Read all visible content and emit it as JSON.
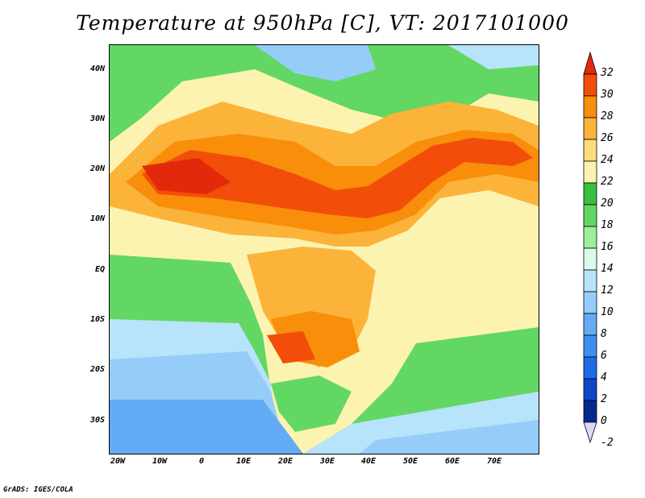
{
  "title": "Temperature at 950hPa [C], VT: 2017101000",
  "footer": "GrADS: IGES/COLA",
  "map": {
    "lat_labels": [
      "40N",
      "30N",
      "20N",
      "10N",
      "EQ",
      "10S",
      "20S",
      "30S"
    ],
    "lon_labels": [
      "20W",
      "10W",
      "0",
      "10E",
      "20E",
      "30E",
      "40E",
      "50E",
      "60E",
      "70E"
    ],
    "lat_range": [
      -37,
      44
    ],
    "lon_range": [
      -23,
      80
    ]
  },
  "colorbar": {
    "labels": [
      "32",
      "30",
      "28",
      "26",
      "24",
      "22",
      "20",
      "18",
      "16",
      "14",
      "12",
      "10",
      "8",
      "6",
      "4",
      "2",
      "0",
      "-2"
    ],
    "colors": [
      "#e22a0a",
      "#f24e0a",
      "#f98e0a",
      "#fcb33a",
      "#fddc7e",
      "#fdf3b0",
      "#38bf3e",
      "#63d763",
      "#9cee9c",
      "#dcfbea",
      "#b7e3fb",
      "#95cdf8",
      "#64abf5",
      "#3f8ff0",
      "#1f6ae6",
      "#0e47c8",
      "#052a8e",
      "#ddd6f8"
    ]
  }
}
